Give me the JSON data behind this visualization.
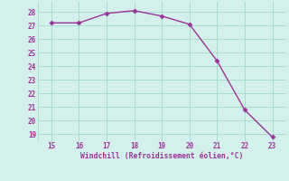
{
  "x": [
    15,
    16,
    17,
    18,
    19,
    20,
    21,
    22,
    23
  ],
  "y": [
    27.2,
    27.2,
    27.9,
    28.1,
    27.7,
    27.1,
    24.4,
    20.8,
    18.8
  ],
  "line_color": "#993399",
  "marker_color": "#993399",
  "bg_color": "#d4f0ec",
  "grid_color": "#aaddcc",
  "xlabel": "Windchill (Refroidissement éolien,°C)",
  "xlabel_color": "#993399",
  "tick_color": "#993399",
  "xlim": [
    14.5,
    23.5
  ],
  "ylim": [
    18.5,
    28.75
  ],
  "xticks": [
    15,
    16,
    17,
    18,
    19,
    20,
    21,
    22,
    23
  ],
  "yticks": [
    19,
    20,
    21,
    22,
    23,
    24,
    25,
    26,
    27,
    28
  ],
  "figsize": [
    3.2,
    2.0
  ],
  "dpi": 100
}
